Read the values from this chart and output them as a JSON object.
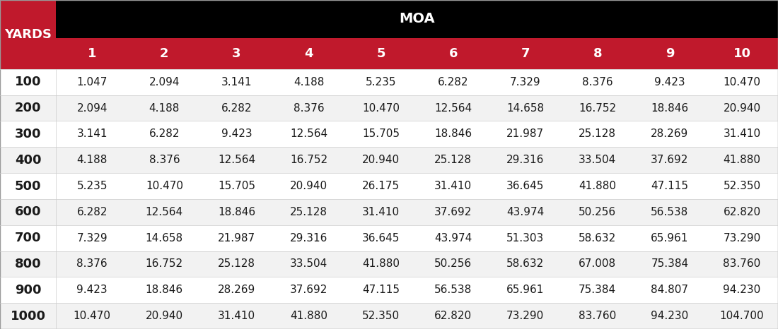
{
  "title": "MOA",
  "col_header": "YARDS",
  "columns": [
    "1",
    "2",
    "3",
    "4",
    "5",
    "6",
    "7",
    "8",
    "9",
    "10"
  ],
  "rows": [
    100,
    200,
    300,
    400,
    500,
    600,
    700,
    800,
    900,
    1000
  ],
  "values": [
    [
      1.047,
      2.094,
      3.141,
      4.188,
      5.235,
      6.282,
      7.329,
      8.376,
      9.423,
      10.47
    ],
    [
      2.094,
      4.188,
      6.282,
      8.376,
      10.47,
      12.564,
      14.658,
      16.752,
      18.846,
      20.94
    ],
    [
      3.141,
      6.282,
      9.423,
      12.564,
      15.705,
      18.846,
      21.987,
      25.128,
      28.269,
      31.41
    ],
    [
      4.188,
      8.376,
      12.564,
      16.752,
      20.94,
      25.128,
      29.316,
      33.504,
      37.692,
      41.88
    ],
    [
      5.235,
      10.47,
      15.705,
      20.94,
      26.175,
      31.41,
      36.645,
      41.88,
      47.115,
      52.35
    ],
    [
      6.282,
      12.564,
      18.846,
      25.128,
      31.41,
      37.692,
      43.974,
      50.256,
      56.538,
      62.82
    ],
    [
      7.329,
      14.658,
      21.987,
      29.316,
      36.645,
      43.974,
      51.303,
      58.632,
      65.961,
      73.29
    ],
    [
      8.376,
      16.752,
      25.128,
      33.504,
      41.88,
      50.256,
      58.632,
      67.008,
      75.384,
      83.76
    ],
    [
      9.423,
      18.846,
      28.269,
      37.692,
      47.115,
      56.538,
      65.961,
      75.384,
      84.807,
      94.23
    ],
    [
      10.47,
      20.94,
      31.41,
      41.88,
      52.35,
      62.82,
      73.29,
      83.76,
      94.23,
      104.7
    ]
  ],
  "bg_black": "#000000",
  "bg_red": "#c0192c",
  "bg_white": "#ffffff",
  "bg_light_gray": "#f2f2f2",
  "text_white": "#ffffff",
  "text_dark": "#1a1a1a",
  "border_color": "#cccccc",
  "title_fontsize": 14,
  "header_fontsize": 13,
  "cell_fontsize": 11,
  "row_header_fontsize": 13
}
